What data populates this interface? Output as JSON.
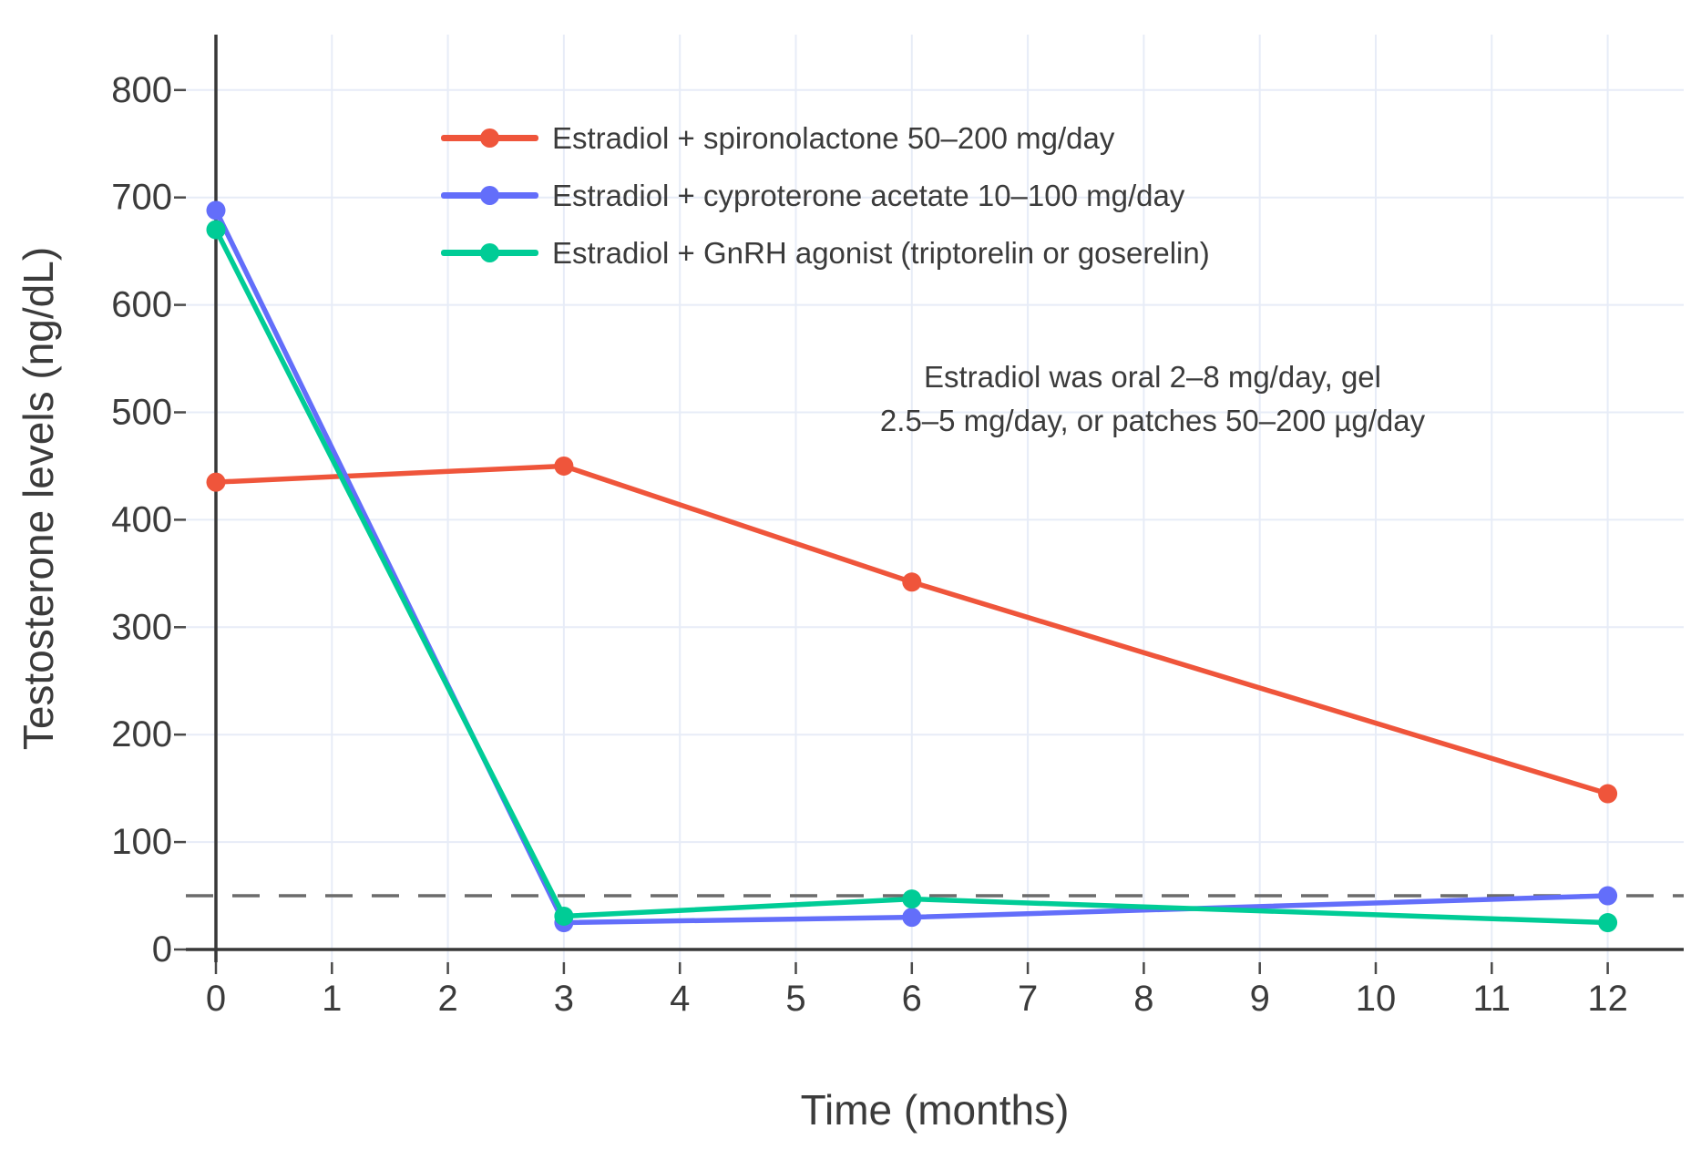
{
  "chart_data": {
    "type": "line",
    "title": "",
    "xlabel": "Time (months)",
    "ylabel": "Testosterone levels (ng/dL)",
    "x": [
      0,
      3,
      6,
      12
    ],
    "series": [
      {
        "name": "Estradiol + spironolactone 50–200 mg/day",
        "color": "#EF553B",
        "values": [
          435,
          450,
          342,
          145
        ]
      },
      {
        "name": "Estradiol + cyproterone acetate 10–100 mg/day",
        "color": "#636EFA",
        "values": [
          688,
          25,
          30,
          50
        ]
      },
      {
        "name": "Estradiol + GnRH agonist (triptorelin or goserelin)",
        "color": "#00CC96",
        "values": [
          670,
          31,
          47,
          25
        ]
      }
    ],
    "x_ticks": [
      0,
      1,
      2,
      3,
      4,
      5,
      6,
      7,
      8,
      9,
      10,
      11,
      12
    ],
    "y_ticks": [
      0,
      100,
      200,
      300,
      400,
      500,
      600,
      700,
      800
    ],
    "xlim": [
      -0.26,
      12.66
    ],
    "ylim": [
      -12,
      852
    ],
    "grid": true,
    "grid_color": "#E7ECF7",
    "axis_line_color": "#383838",
    "tick_color": "#4a4a4a",
    "reference_line": {
      "value": 50,
      "style": "dashed",
      "color": "#6b6b6b"
    },
    "legend_position": "top-left-inside",
    "annotation": {
      "lines": [
        "Estradiol was oral 2–8 mg/day, gel",
        "2.5–5 mg/day, or patches 50–200 µg/day"
      ]
    }
  }
}
